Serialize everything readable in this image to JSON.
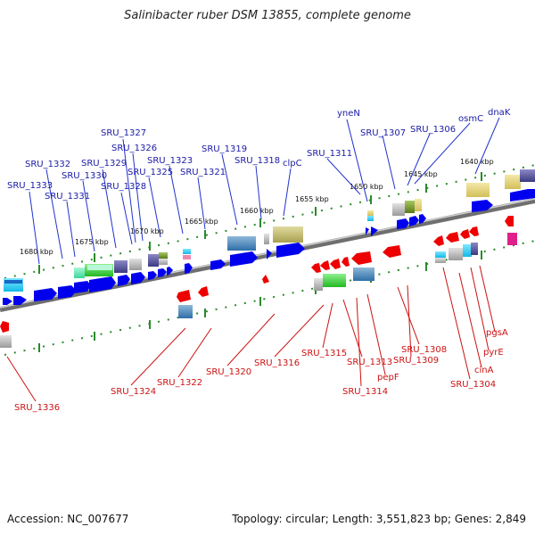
{
  "title": "Salinibacter ruber DSM 13855, complete genome",
  "accession": "Accession: NC_007677",
  "summary": "Topology: circular; Length: 3,551,823 bp; Genes: 2,849",
  "colors": {
    "forward": "#0000ee",
    "reverse": "#ee0000",
    "backbone": "#777777",
    "tick": "#2a8a2a",
    "label_forward": "#1a1aa6",
    "label_reverse": "#cc1111"
  },
  "scale_labels": [
    "1680 kbp",
    "1675 kbp",
    "1670 kbp",
    "1665 kbp",
    "1660 kbp",
    "1655 kbp",
    "1650 kbp",
    "1645 kbp",
    "1640 kbp"
  ],
  "upper_labels": [
    "SRU_1333",
    "SRU_1332",
    "SRU_1331",
    "SRU_1330",
    "SRU_1329",
    "SRU_1328",
    "SRU_1327",
    "SRU_1326",
    "SRU_1325",
    "SRU_1323",
    "SRU_1321",
    "SRU_1319",
    "SRU_1318",
    "clpC",
    "SRU_1311",
    "yneN",
    "SRU_1307",
    "SRU_1306",
    "osmC",
    "dnaK"
  ],
  "lower_labels": [
    "SRU_1336",
    "SRU_1324",
    "SRU_1322",
    "SRU_1320",
    "SRU_1316",
    "SRU_1315",
    "SRU_1313",
    "SRU_1314",
    "pepF",
    "SRU_1308",
    "SRU_1309",
    "SRU_1304",
    "cinA",
    "pyrE",
    "pgsA"
  ]
}
